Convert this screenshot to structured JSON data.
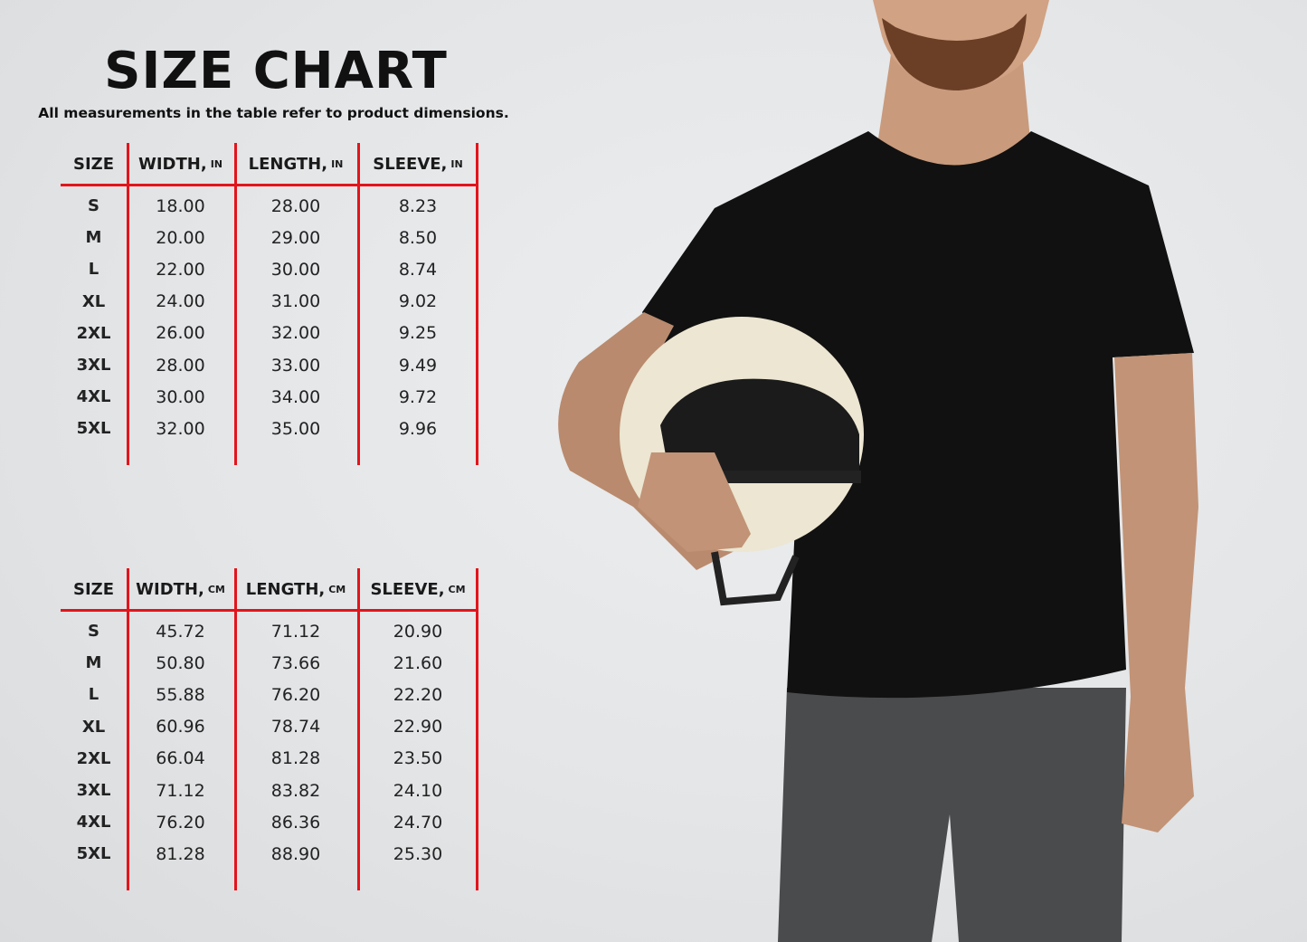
{
  "title": "SIZE CHART",
  "subtitle": "All measurements in the table refer to product dimensions.",
  "accent_color": "#e3141b",
  "tables": [
    {
      "headers": [
        {
          "label": "SIZE",
          "unit": ""
        },
        {
          "label": "WIDTH,",
          "unit": "IN"
        },
        {
          "label": "LENGTH,",
          "unit": "IN"
        },
        {
          "label": "SLEEVE,",
          "unit": "IN"
        }
      ],
      "rows": [
        [
          "S",
          "18.00",
          "28.00",
          "8.23"
        ],
        [
          "M",
          "20.00",
          "29.00",
          "8.50"
        ],
        [
          "L",
          "22.00",
          "30.00",
          "8.74"
        ],
        [
          "XL",
          "24.00",
          "31.00",
          "9.02"
        ],
        [
          "2XL",
          "26.00",
          "32.00",
          "9.25"
        ],
        [
          "3XL",
          "28.00",
          "33.00",
          "9.49"
        ],
        [
          "4XL",
          "30.00",
          "34.00",
          "9.72"
        ],
        [
          "5XL",
          "32.00",
          "35.00",
          "9.96"
        ]
      ]
    },
    {
      "headers": [
        {
          "label": "SIZE",
          "unit": ""
        },
        {
          "label": "WIDTH,",
          "unit": "CM"
        },
        {
          "label": "LENGTH,",
          "unit": "CM"
        },
        {
          "label": "SLEEVE,",
          "unit": "CM"
        }
      ],
      "rows": [
        [
          "S",
          "45.72",
          "71.12",
          "20.90"
        ],
        [
          "M",
          "50.80",
          "73.66",
          "21.60"
        ],
        [
          "L",
          "55.88",
          "76.20",
          "22.20"
        ],
        [
          "XL",
          "60.96",
          "78.74",
          "22.90"
        ],
        [
          "2XL",
          "66.04",
          "81.28",
          "23.50"
        ],
        [
          "3XL",
          "71.12",
          "83.82",
          "24.10"
        ],
        [
          "4XL",
          "76.20",
          "86.36",
          "24.70"
        ],
        [
          "5XL",
          "81.28",
          "88.90",
          "25.30"
        ]
      ]
    }
  ]
}
